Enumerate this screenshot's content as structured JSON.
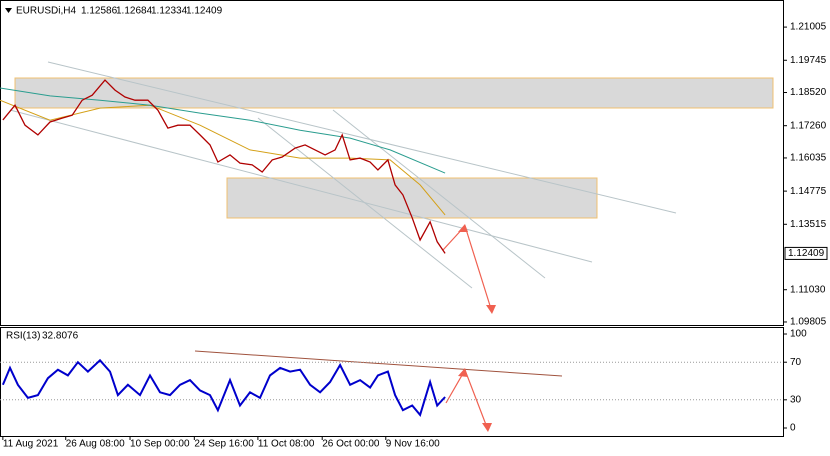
{
  "chart_data": [
    {
      "type": "line",
      "symbol": "EURUSDi,H4",
      "ohlc": [
        1.12586,
        1.12684,
        1.12334,
        1.12409
      ],
      "last_price": 1.12409,
      "xlim": [
        0,
        1096
      ],
      "ylim": [
        1.0969,
        1.2192
      ],
      "yticks": [
        1.21005,
        1.19745,
        {
          "value": 1.1852,
          "label": "1.18520"
        },
        {
          "value": 1.1726,
          "label": "1.17260"
        },
        1.16035,
        1.14775,
        1.13515,
        {
          "value": 1.1103,
          "label": "1.11030"
        },
        1.09805
      ],
      "series": [
        {
          "color": "#b00000",
          "x": [
            4,
            21,
            35,
            53,
            70,
            87,
            101,
            115,
            129,
            147,
            161,
            175,
            189,
            207,
            221,
            235,
            249,
            266,
            280,
            294,
            305,
            322,
            336,
            353,
            367,
            381,
            395,
            413,
            427,
            441,
            455,
            469,
            479,
            490,
            504,
            518,
            529,
            543,
            553,
            564,
            577,
            588,
            602,
            612,
            623
          ],
          "values": [
            1.1748,
            1.1804,
            1.1728,
            1.1691,
            1.174,
            1.1755,
            1.1766,
            1.1823,
            1.1842,
            1.1899,
            1.1861,
            1.1835,
            1.1823,
            1.1823,
            1.1785,
            1.1717,
            1.1728,
            1.1728,
            1.1691,
            1.1653,
            1.1588,
            1.1615,
            1.1584,
            1.1577,
            1.155,
            1.1596,
            1.1607,
            1.1641,
            1.1653,
            1.1634,
            1.1615,
            1.1634,
            1.1691,
            1.1596,
            1.1603,
            1.1588,
            1.1558,
            1.1596,
            1.1501,
            1.1463,
            1.1376,
            1.1292,
            1.1361,
            1.1285,
            1.1241
          ]
        },
        {
          "color": "#2a9d8f",
          "x": [
            0,
            70,
            140,
            210,
            280,
            350,
            420,
            490,
            546,
            623
          ],
          "values": [
            1.1869,
            1.1839,
            1.1823,
            1.1804,
            1.1774,
            1.1747,
            1.1709,
            1.1679,
            1.1634,
            1.1546
          ]
        },
        {
          "color": "#d4a017",
          "x": [
            0,
            70,
            140,
            210,
            280,
            350,
            420,
            490,
            546,
            588,
            623
          ],
          "values": [
            1.1823,
            1.1747,
            1.1793,
            1.1804,
            1.1728,
            1.1634,
            1.1603,
            1.1603,
            1.1596,
            1.1501,
            1.1387
          ]
        }
      ]
    },
    {
      "type": "line",
      "label": "RSI(13)",
      "last_value": 32.8076,
      "xlim": [
        0,
        1096
      ],
      "ylim": [
        -8.5,
        106.4
      ],
      "yticks": [
        100,
        70,
        30,
        0
      ],
      "levels": [
        70,
        30
      ],
      "xticks": [
        {
          "value": 4,
          "label": "11 Aug 2021"
        },
        {
          "value": 92,
          "label": "26 Aug 08:00"
        },
        {
          "value": 182,
          "label": "10 Sep 00:00"
        },
        {
          "value": 272,
          "label": "24 Sep 16:00"
        },
        {
          "value": 361,
          "label": "11 Oct 08:00"
        },
        {
          "value": 451,
          "label": "26 Oct 00:00"
        },
        {
          "value": 540,
          "label": "9 Nov 16:00"
        }
      ],
      "series": [
        {
          "color": "#0000cc",
          "x": [
            4,
            14,
            25,
            39,
            53,
            67,
            81,
            95,
            109,
            123,
            140,
            154,
            165,
            179,
            196,
            210,
            224,
            238,
            252,
            266,
            280,
            294,
            305,
            322,
            336,
            350,
            364,
            378,
            392,
            406,
            420,
            434,
            448,
            462,
            476,
            490,
            504,
            518,
            529,
            543,
            553,
            564,
            577,
            588,
            602,
            612,
            623
          ],
          "values": [
            46,
            64,
            46,
            32,
            35,
            53,
            62,
            56,
            70,
            60,
            72,
            60,
            35,
            46,
            35,
            56,
            38,
            35,
            46,
            51,
            40,
            35,
            19,
            51,
            24,
            38,
            32,
            56,
            64,
            60,
            62,
            46,
            38,
            49,
            67,
            46,
            51,
            43,
            56,
            60,
            35,
            19,
            24,
            14,
            49,
            24,
            33
          ]
        }
      ]
    }
  ]
}
